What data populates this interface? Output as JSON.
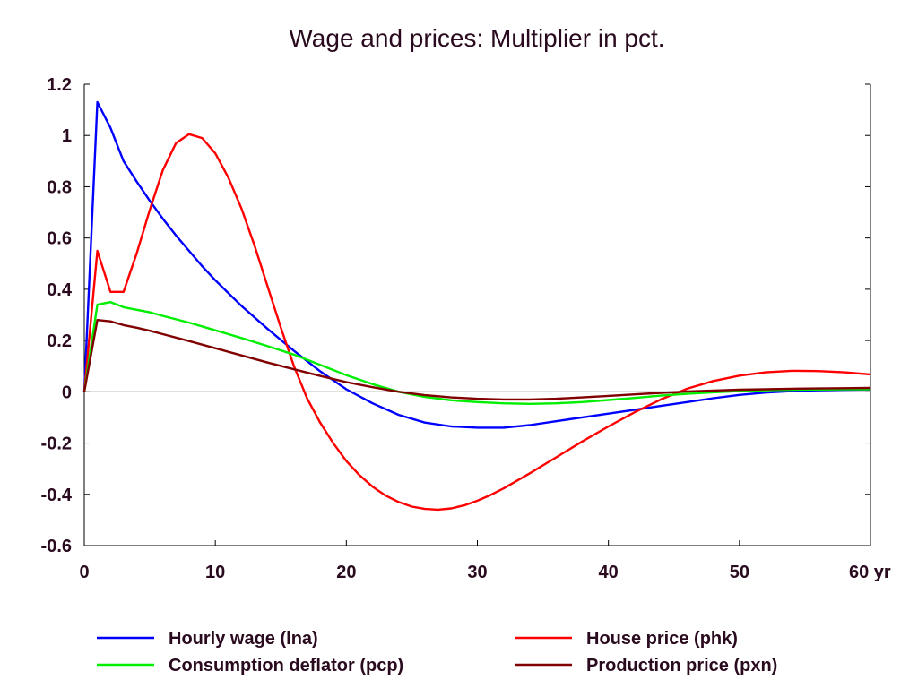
{
  "chart_data": {
    "type": "line",
    "title": "Wage and prices: Multiplier in pct.",
    "xlabel": "",
    "ylabel": "",
    "x_unit_label": "yr",
    "xlim": [
      0,
      60
    ],
    "ylim": [
      -0.6,
      1.2
    ],
    "x_ticks": [
      0,
      10,
      20,
      30,
      40,
      50,
      60
    ],
    "x_tick_labels": [
      "0",
      "10",
      "20",
      "30",
      "40",
      "50",
      "60 yr"
    ],
    "y_ticks": [
      -0.6,
      -0.4,
      -0.2,
      0,
      0.2,
      0.4,
      0.6,
      0.8,
      1,
      1.2
    ],
    "y_tick_labels": [
      "-0.6",
      "-0.4",
      "-0.2",
      "0",
      "0.2",
      "0.4",
      "0.6",
      "0.8",
      "1",
      "1.2"
    ],
    "grid": false,
    "legend_position": "bottom",
    "series": [
      {
        "name": "Hourly wage (lna)",
        "color": "#0000ff",
        "points": [
          [
            0,
            0
          ],
          [
            1,
            1.13
          ],
          [
            2,
            1.03
          ],
          [
            3,
            0.9
          ],
          [
            4,
            0.82
          ],
          [
            5,
            0.745
          ],
          [
            6,
            0.675
          ],
          [
            7,
            0.61
          ],
          [
            8,
            0.55
          ],
          [
            9,
            0.49
          ],
          [
            10,
            0.435
          ],
          [
            12,
            0.335
          ],
          [
            14,
            0.245
          ],
          [
            16,
            0.16
          ],
          [
            18,
            0.08
          ],
          [
            20,
            0.01
          ],
          [
            22,
            -0.045
          ],
          [
            24,
            -0.09
          ],
          [
            26,
            -0.12
          ],
          [
            28,
            -0.135
          ],
          [
            30,
            -0.14
          ],
          [
            32,
            -0.14
          ],
          [
            34,
            -0.13
          ],
          [
            36,
            -0.115
          ],
          [
            38,
            -0.1
          ],
          [
            40,
            -0.085
          ],
          [
            42,
            -0.07
          ],
          [
            44,
            -0.055
          ],
          [
            46,
            -0.04
          ],
          [
            48,
            -0.025
          ],
          [
            50,
            -0.012
          ],
          [
            52,
            -0.003
          ],
          [
            54,
            0.003
          ],
          [
            56,
            0.006
          ],
          [
            58,
            0.008
          ],
          [
            60,
            0.009
          ]
        ]
      },
      {
        "name": "House price (phk)",
        "color": "#ff0000",
        "points": [
          [
            0,
            0
          ],
          [
            1,
            0.55
          ],
          [
            2,
            0.39
          ],
          [
            3,
            0.39
          ],
          [
            4,
            0.54
          ],
          [
            5,
            0.71
          ],
          [
            6,
            0.865
          ],
          [
            7,
            0.97
          ],
          [
            8,
            1.005
          ],
          [
            9,
            0.99
          ],
          [
            10,
            0.93
          ],
          [
            11,
            0.835
          ],
          [
            12,
            0.715
          ],
          [
            13,
            0.57
          ],
          [
            14,
            0.41
          ],
          [
            15,
            0.25
          ],
          [
            16,
            0.1
          ],
          [
            17,
            -0.025
          ],
          [
            18,
            -0.12
          ],
          [
            19,
            -0.2
          ],
          [
            20,
            -0.27
          ],
          [
            21,
            -0.325
          ],
          [
            22,
            -0.37
          ],
          [
            23,
            -0.405
          ],
          [
            24,
            -0.43
          ],
          [
            25,
            -0.448
          ],
          [
            26,
            -0.457
          ],
          [
            27,
            -0.46
          ],
          [
            28,
            -0.455
          ],
          [
            29,
            -0.443
          ],
          [
            30,
            -0.425
          ],
          [
            31,
            -0.403
          ],
          [
            32,
            -0.377
          ],
          [
            34,
            -0.318
          ],
          [
            36,
            -0.256
          ],
          [
            38,
            -0.194
          ],
          [
            40,
            -0.135
          ],
          [
            42,
            -0.08
          ],
          [
            44,
            -0.03
          ],
          [
            46,
            0.012
          ],
          [
            48,
            0.042
          ],
          [
            50,
            0.063
          ],
          [
            52,
            0.076
          ],
          [
            54,
            0.082
          ],
          [
            56,
            0.081
          ],
          [
            58,
            0.076
          ],
          [
            60,
            0.068
          ]
        ]
      },
      {
        "name": "Consumption deflator (pcp)",
        "color": "#00ee00",
        "points": [
          [
            0,
            0
          ],
          [
            1,
            0.34
          ],
          [
            2,
            0.35
          ],
          [
            3,
            0.33
          ],
          [
            4,
            0.32
          ],
          [
            5,
            0.31
          ],
          [
            6,
            0.296
          ],
          [
            8,
            0.27
          ],
          [
            10,
            0.24
          ],
          [
            12,
            0.21
          ],
          [
            14,
            0.178
          ],
          [
            16,
            0.145
          ],
          [
            18,
            0.105
          ],
          [
            20,
            0.065
          ],
          [
            22,
            0.03
          ],
          [
            24,
            0.0
          ],
          [
            26,
            -0.02
          ],
          [
            28,
            -0.033
          ],
          [
            30,
            -0.04
          ],
          [
            32,
            -0.045
          ],
          [
            34,
            -0.047
          ],
          [
            36,
            -0.045
          ],
          [
            38,
            -0.04
          ],
          [
            40,
            -0.032
          ],
          [
            42,
            -0.024
          ],
          [
            44,
            -0.015
          ],
          [
            46,
            -0.008
          ],
          [
            48,
            -0.002
          ],
          [
            50,
            0.003
          ],
          [
            52,
            0.006
          ],
          [
            54,
            0.008
          ],
          [
            56,
            0.009
          ],
          [
            58,
            0.01
          ],
          [
            60,
            0.01
          ]
        ]
      },
      {
        "name": "Production price (pxn)",
        "color": "#800000",
        "points": [
          [
            0,
            0
          ],
          [
            1,
            0.28
          ],
          [
            2,
            0.275
          ],
          [
            3,
            0.26
          ],
          [
            4,
            0.25
          ],
          [
            5,
            0.238
          ],
          [
            6,
            0.225
          ],
          [
            8,
            0.198
          ],
          [
            10,
            0.17
          ],
          [
            12,
            0.142
          ],
          [
            14,
            0.114
          ],
          [
            16,
            0.088
          ],
          [
            18,
            0.062
          ],
          [
            20,
            0.038
          ],
          [
            22,
            0.018
          ],
          [
            24,
            0.0
          ],
          [
            26,
            -0.013
          ],
          [
            28,
            -0.022
          ],
          [
            30,
            -0.027
          ],
          [
            32,
            -0.03
          ],
          [
            34,
            -0.03
          ],
          [
            36,
            -0.027
          ],
          [
            38,
            -0.022
          ],
          [
            40,
            -0.016
          ],
          [
            42,
            -0.01
          ],
          [
            44,
            -0.004
          ],
          [
            46,
            0.001
          ],
          [
            48,
            0.005
          ],
          [
            50,
            0.008
          ],
          [
            52,
            0.01
          ],
          [
            54,
            0.012
          ],
          [
            56,
            0.013
          ],
          [
            58,
            0.014
          ],
          [
            60,
            0.015
          ]
        ]
      }
    ]
  }
}
